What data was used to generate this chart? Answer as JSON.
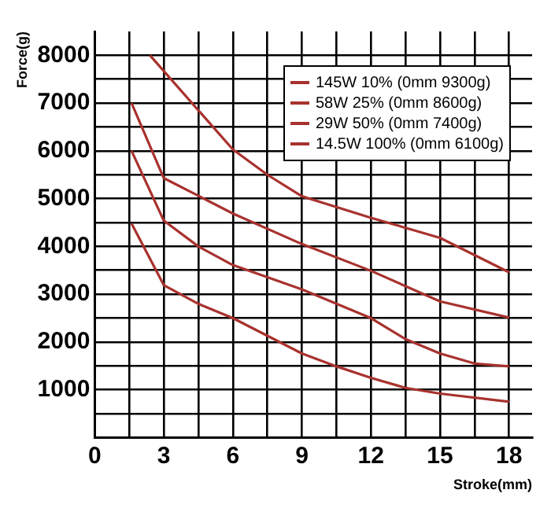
{
  "chart_data": {
    "type": "line",
    "xlabel": "Stroke(mm)",
    "ylabel": "Force(g)",
    "xlim": [
      0,
      19
    ],
    "ylim": [
      0,
      8500
    ],
    "xticks": [
      0,
      {
        "value": 1.5,
        "label": null
      },
      3,
      {
        "value": 4.5,
        "label": null
      },
      6,
      {
        "value": 7.5,
        "label": null
      },
      9,
      {
        "value": 10.5,
        "label": null
      },
      12,
      {
        "value": 13.5,
        "label": null
      },
      15,
      {
        "value": 16.5,
        "label": null
      },
      18
    ],
    "yticks": [
      {
        "value": 500,
        "label": null
      },
      1000,
      {
        "value": 1500,
        "label": null
      },
      2000,
      {
        "value": 2500,
        "label": null
      },
      3000,
      {
        "value": 3500,
        "label": null
      },
      4000,
      {
        "value": 4500,
        "label": null
      },
      5000,
      {
        "value": 5500,
        "label": null
      },
      6000,
      {
        "value": 6500,
        "label": null
      },
      7000,
      {
        "value": 7500,
        "label": null
      },
      8000
    ],
    "grid": true,
    "legend": "top right",
    "marker": "none",
    "line_style": "solid",
    "series": [
      {
        "name": "145W 10% (0mm 9300g)",
        "color": "#a8322e",
        "x": [
          2.4,
          6,
          7.5,
          9,
          12,
          15,
          18
        ],
        "values": [
          8000,
          6030,
          5500,
          5050,
          4600,
          4180,
          3460
        ]
      },
      {
        "name": "58W 25% (0mm 8600g)",
        "color": "#a8322e",
        "x": [
          1.6,
          3,
          6,
          9,
          12,
          15,
          18
        ],
        "values": [
          7000,
          5430,
          4690,
          4050,
          3490,
          2850,
          2510
        ]
      },
      {
        "name": "29W 50% (0mm 7400g)",
        "color": "#a8322e",
        "x": [
          1.6,
          3,
          4.5,
          6,
          9,
          12,
          13.5,
          15,
          16.5,
          18
        ],
        "values": [
          6000,
          4540,
          4000,
          3610,
          3100,
          2500,
          2060,
          1760,
          1550,
          1490
        ]
      },
      {
        "name": "14.5W 100% (0mm 6100g)",
        "color": "#a8322e",
        "x": [
          1.6,
          3,
          4.5,
          6,
          7.5,
          9,
          10.5,
          12,
          13.5,
          15,
          18
        ],
        "values": [
          4480,
          3190,
          2800,
          2500,
          2130,
          1760,
          1490,
          1250,
          1040,
          920,
          750
        ]
      }
    ]
  }
}
